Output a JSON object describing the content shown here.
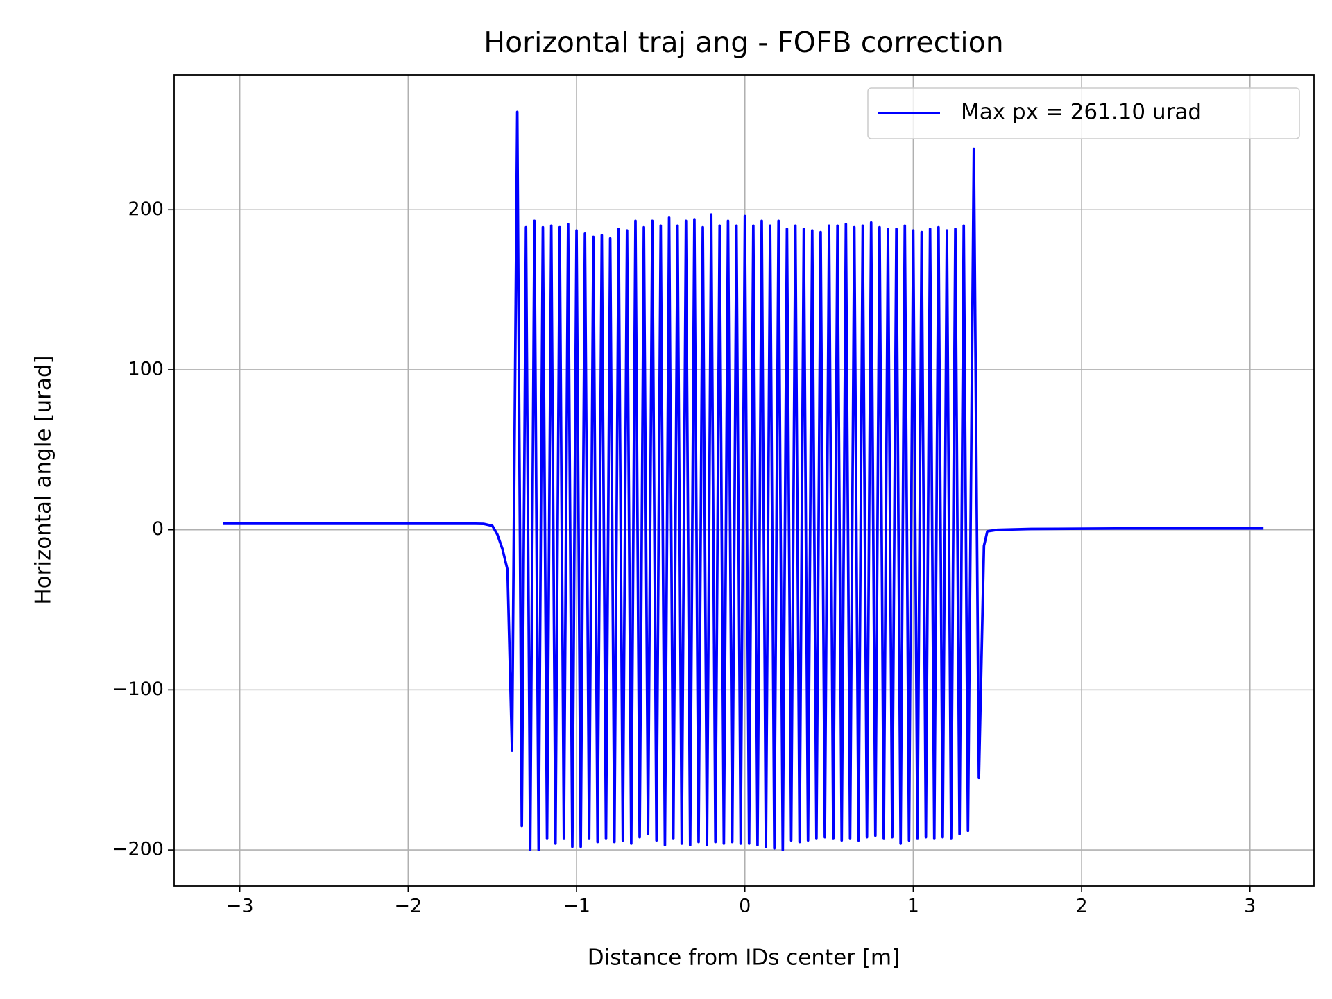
{
  "chart_data": {
    "type": "line",
    "title": "Horizontal traj ang - FOFB correction",
    "x_label": "Distance from IDs center [m]",
    "y_label": "Horizontal angle [urad]",
    "xlim": [
      -3.39,
      3.38
    ],
    "ylim": [
      -222.5,
      284.2
    ],
    "xticks": [
      {
        "value": -3,
        "label": "−3"
      },
      {
        "value": -2,
        "label": "−2"
      },
      {
        "value": -1,
        "label": "−1"
      },
      0,
      1,
      2,
      3
    ],
    "yticks": [
      {
        "value": -200,
        "label": "−200"
      },
      {
        "value": -100,
        "label": "−100"
      },
      0,
      100,
      200
    ],
    "grid": true,
    "legend_position": "upper right",
    "x": [
      -3.1,
      -2,
      -1.6,
      -1.55,
      -1.5,
      -1.47,
      -1.44,
      -1.41,
      -1.383,
      -1.352,
      -1.325,
      -1.3,
      -1.275,
      -1.25,
      -1.225,
      -1.2,
      -1.175,
      -1.15,
      -1.125,
      -1.1,
      -1.075,
      -1.05,
      -1.025,
      -1,
      -0.975,
      -0.95,
      -0.925,
      -0.9,
      -0.875,
      -0.85,
      -0.825,
      -0.8,
      -0.775,
      -0.75,
      -0.725,
      -0.7,
      -0.675,
      -0.65,
      -0.625,
      -0.6,
      -0.575,
      -0.55,
      -0.525,
      -0.5,
      -0.475,
      -0.45,
      -0.425,
      -0.4,
      -0.375,
      -0.35,
      -0.325,
      -0.3,
      -0.275,
      -0.25,
      -0.225,
      -0.2,
      -0.175,
      -0.15,
      -0.125,
      -0.1,
      -0.075,
      -0.05,
      -0.025,
      0,
      0.025,
      0.05,
      0.075,
      0.1,
      0.125,
      0.15,
      0.175,
      0.2,
      0.225,
      0.25,
      0.275,
      0.3,
      0.325,
      0.35,
      0.375,
      0.4,
      0.425,
      0.45,
      0.475,
      0.5,
      0.525,
      0.55,
      0.575,
      0.6,
      0.625,
      0.65,
      0.675,
      0.7,
      0.725,
      0.75,
      0.775,
      0.8,
      0.825,
      0.85,
      0.875,
      0.9,
      0.925,
      0.95,
      0.975,
      1,
      1.025,
      1.05,
      1.075,
      1.1,
      1.125,
      1.15,
      1.175,
      1.2,
      1.225,
      1.25,
      1.275,
      1.3,
      1.325,
      1.36,
      1.39,
      1.42,
      1.44,
      1.5,
      1.7,
      2.2,
      3.08
    ],
    "series": [
      {
        "name": "Max px = 261.10 urad",
        "color": "#0000ff",
        "values": [
          3.8,
          3.8,
          3.8,
          3.7,
          2.5,
          -3,
          -12,
          -25,
          -138,
          261.1,
          -185,
          189,
          -200,
          193,
          -200,
          189,
          -193,
          190,
          -196,
          189,
          -193,
          191,
          -198,
          187,
          -198,
          185,
          -193,
          183,
          -195,
          184,
          -193,
          182,
          -195,
          188,
          -194,
          187,
          -196,
          193,
          -192,
          189,
          -190,
          193,
          -194,
          190,
          -197,
          195,
          -193,
          190,
          -196,
          193,
          -197,
          194,
          -195,
          189,
          -197,
          197,
          -195,
          190,
          -196,
          193,
          -195,
          190,
          -196,
          196,
          -196,
          190,
          -197,
          193,
          -198,
          190,
          -199,
          193,
          -200,
          188,
          -194,
          190,
          -195,
          188,
          -194,
          187,
          -193,
          186,
          -192,
          190,
          -193,
          190,
          -194,
          191,
          -193,
          189,
          -194,
          190,
          -192,
          192,
          -191,
          189,
          -193,
          188,
          -192,
          188,
          -196,
          190,
          -194,
          187,
          -193,
          186,
          -192,
          188,
          -193,
          189,
          -192,
          187,
          -193,
          188,
          -190,
          190,
          -188,
          238,
          -155,
          -10,
          -1,
          0,
          0.5,
          0.8,
          0.8
        ]
      }
    ]
  }
}
